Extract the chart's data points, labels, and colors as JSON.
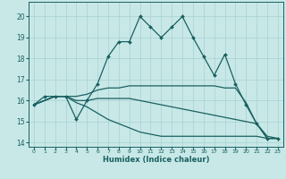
{
  "title": "",
  "xlabel": "Humidex (Indice chaleur)",
  "background_color": "#c8e8e8",
  "grid_color": "#a8d0d0",
  "line_color": "#1a6060",
  "xlim": [
    -0.5,
    23.5
  ],
  "ylim": [
    13.8,
    20.7
  ],
  "yticks": [
    14,
    15,
    16,
    17,
    18,
    19,
    20
  ],
  "xticks": [
    0,
    1,
    2,
    3,
    4,
    5,
    6,
    7,
    8,
    9,
    10,
    11,
    12,
    13,
    14,
    15,
    16,
    17,
    18,
    19,
    20,
    21,
    22,
    23
  ],
  "lines": [
    {
      "x": [
        0,
        1,
        2,
        3,
        4,
        5,
        6,
        7,
        8,
        9,
        10,
        11,
        12,
        13,
        14,
        15,
        16,
        17,
        18,
        19,
        20,
        21,
        22,
        23
      ],
      "y": [
        15.8,
        16.2,
        16.2,
        16.2,
        15.1,
        16.0,
        16.8,
        18.1,
        18.8,
        18.8,
        20.0,
        19.5,
        19.0,
        19.5,
        20.0,
        19.0,
        18.1,
        17.2,
        18.2,
        16.8,
        15.8,
        14.9,
        14.2,
        14.2
      ],
      "with_marker": true,
      "linewidth": 0.9,
      "markersize": 2.0
    },
    {
      "x": [
        0,
        2,
        3,
        4,
        5,
        6,
        7,
        8,
        9,
        10,
        11,
        12,
        13,
        14,
        15,
        16,
        17,
        18,
        19,
        20,
        21,
        22,
        23
      ],
      "y": [
        15.8,
        16.2,
        16.2,
        16.2,
        16.3,
        16.5,
        16.6,
        16.6,
        16.7,
        16.7,
        16.7,
        16.7,
        16.7,
        16.7,
        16.7,
        16.7,
        16.7,
        16.6,
        16.6,
        15.9,
        14.9,
        14.2,
        14.2
      ],
      "with_marker": false,
      "linewidth": 0.9,
      "markersize": 0
    },
    {
      "x": [
        0,
        2,
        3,
        4,
        5,
        6,
        7,
        8,
        9,
        10,
        11,
        12,
        13,
        14,
        15,
        16,
        17,
        18,
        19,
        20,
        21,
        22,
        23
      ],
      "y": [
        15.8,
        16.2,
        16.2,
        16.0,
        16.0,
        16.1,
        16.1,
        16.1,
        16.1,
        16.0,
        15.9,
        15.8,
        15.7,
        15.6,
        15.5,
        15.4,
        15.3,
        15.2,
        15.1,
        15.0,
        14.9,
        14.3,
        14.2
      ],
      "with_marker": false,
      "linewidth": 0.9,
      "markersize": 0
    },
    {
      "x": [
        0,
        2,
        3,
        4,
        5,
        6,
        7,
        8,
        9,
        10,
        11,
        12,
        13,
        14,
        15,
        16,
        17,
        18,
        19,
        20,
        21,
        22,
        23
      ],
      "y": [
        15.8,
        16.2,
        16.2,
        15.9,
        15.7,
        15.4,
        15.1,
        14.9,
        14.7,
        14.5,
        14.4,
        14.3,
        14.3,
        14.3,
        14.3,
        14.3,
        14.3,
        14.3,
        14.3,
        14.3,
        14.3,
        14.2,
        14.2
      ],
      "with_marker": false,
      "linewidth": 0.9,
      "markersize": 0
    }
  ]
}
